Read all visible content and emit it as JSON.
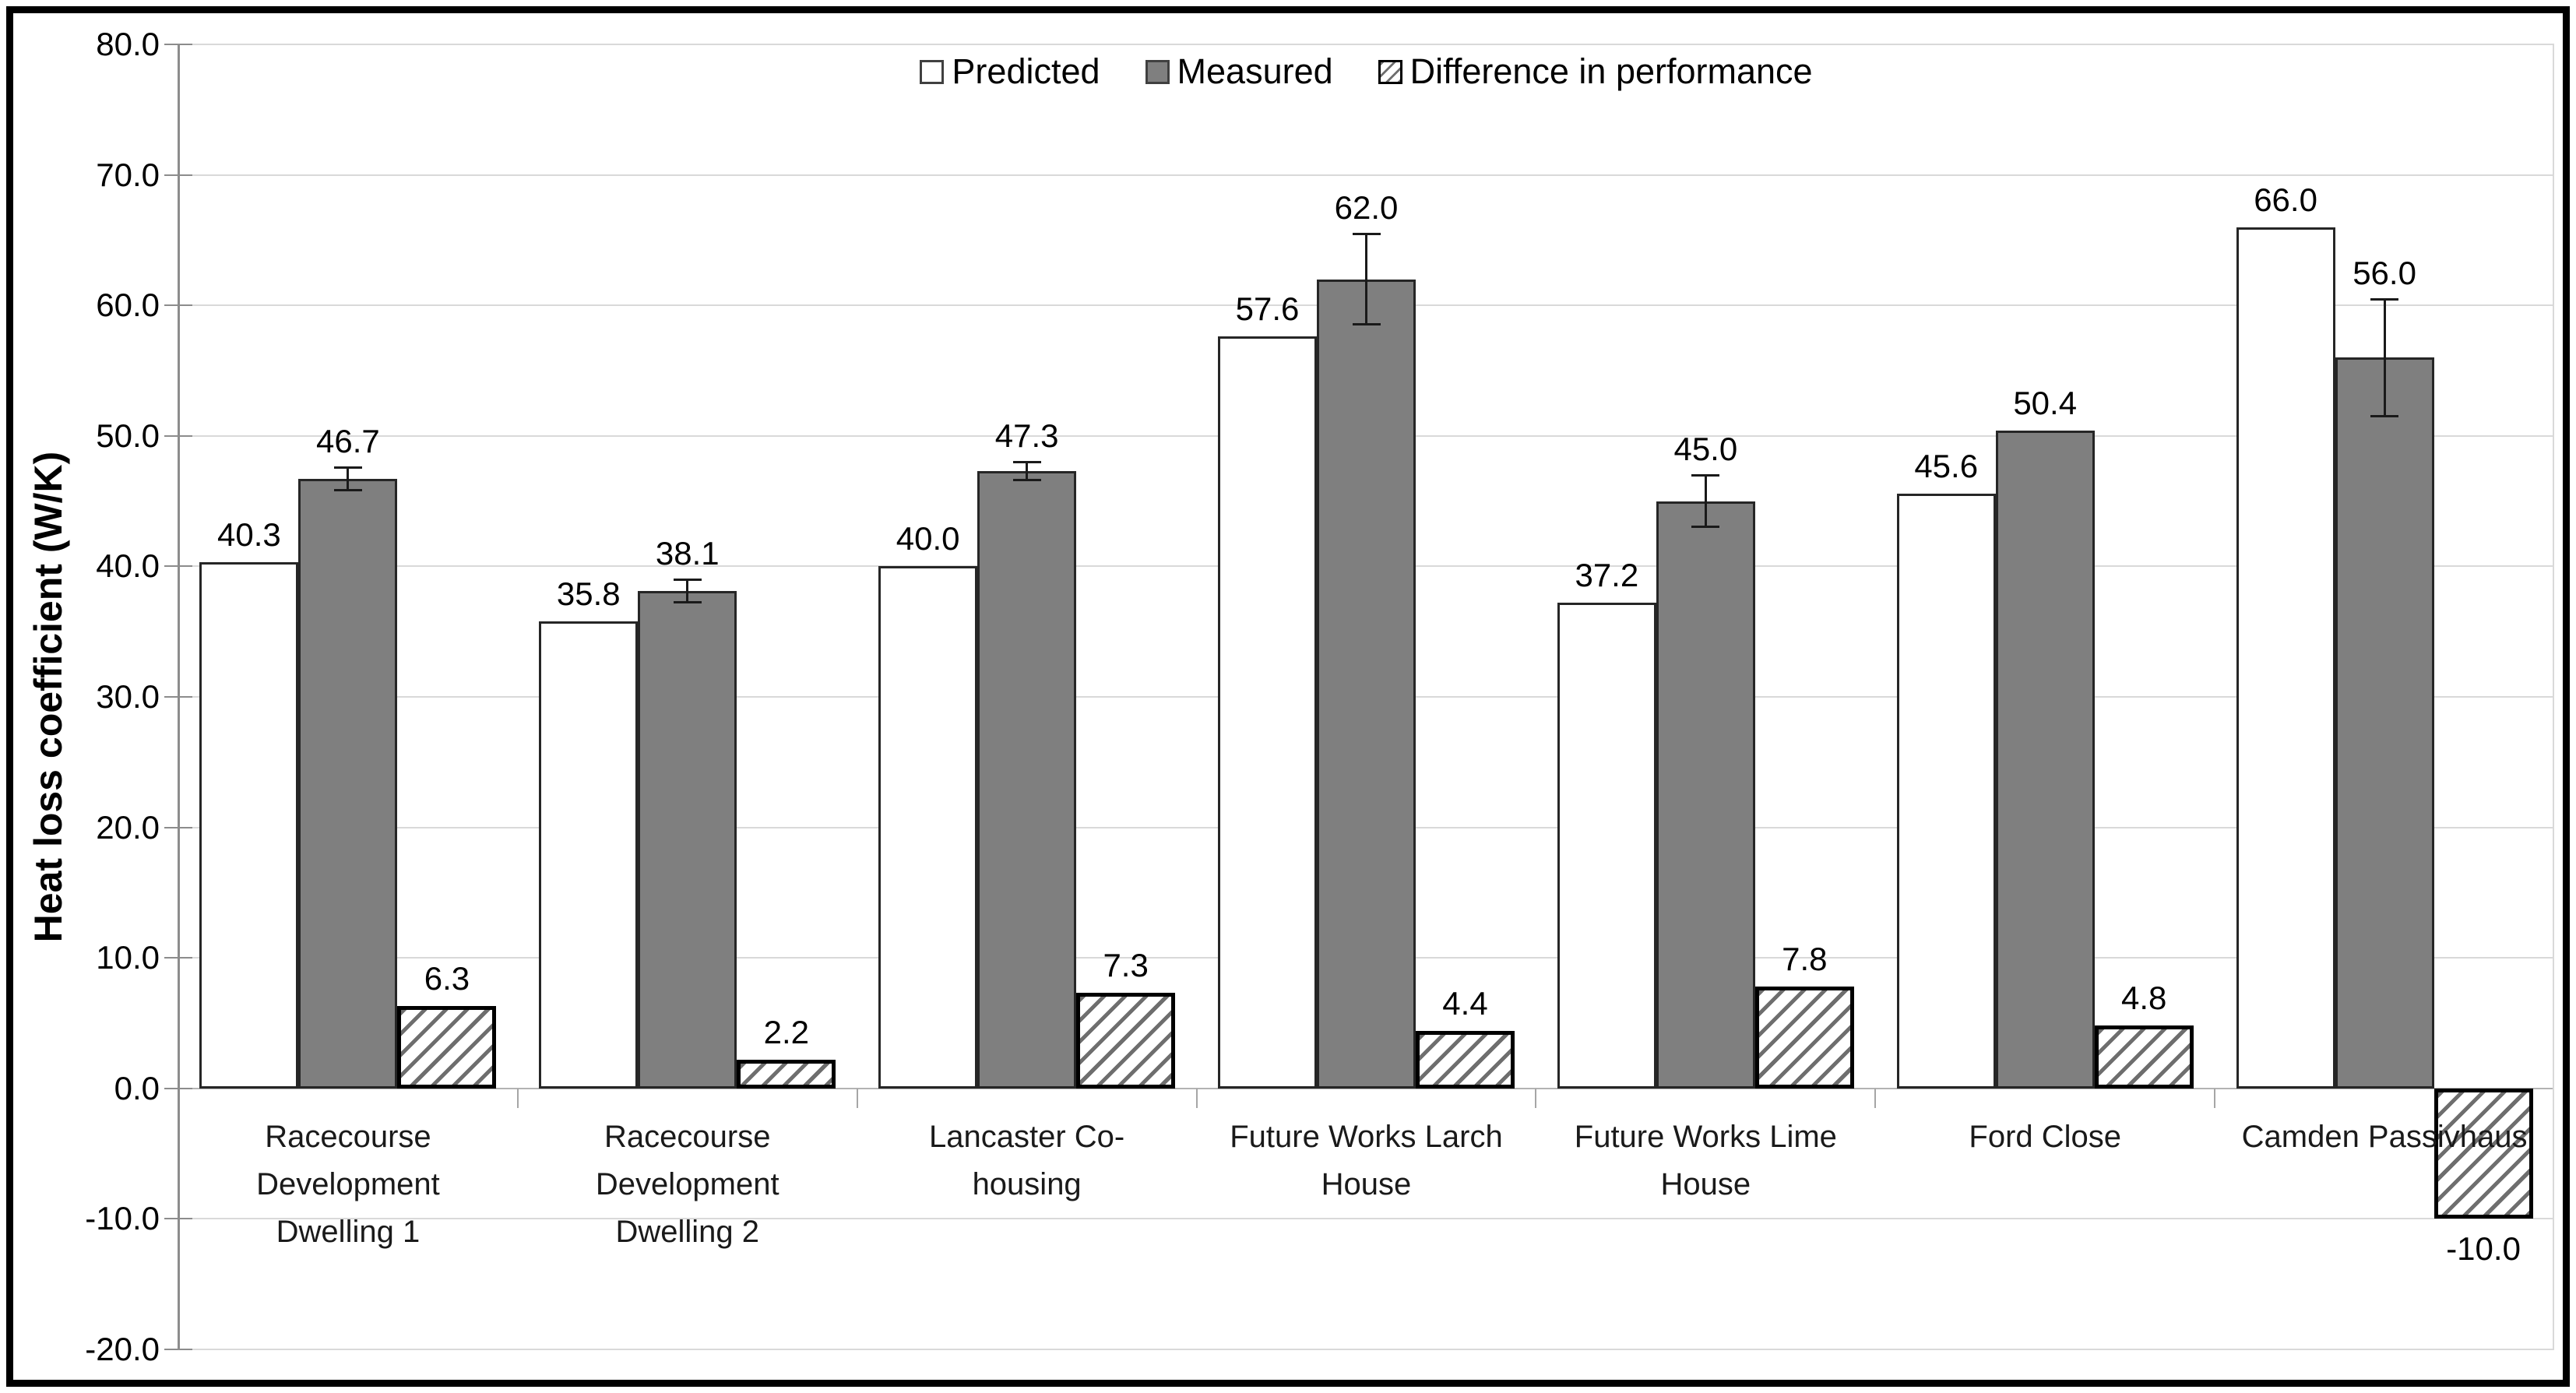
{
  "figure": {
    "background": "#ffffff",
    "border_color": "#000000"
  },
  "y_axis": {
    "title": "Heat loss coefficient (W/K)",
    "min": -20,
    "max": 80,
    "step": 10,
    "tick_labels": [
      "80.0",
      "70.0",
      "60.0",
      "50.0",
      "40.0",
      "30.0",
      "20.0",
      "10.0",
      "0.0",
      "-10.0",
      "-20.0"
    ]
  },
  "legend": {
    "items": [
      {
        "label": "Predicted",
        "swatch": "predicted"
      },
      {
        "label": "Measured",
        "swatch": "measured"
      },
      {
        "label": "Difference in performance",
        "swatch": "difference"
      }
    ]
  },
  "colors": {
    "predicted_fill": "#ffffff",
    "measured_fill": "#7f7f7f",
    "hatch_line": "#6e6e6e",
    "bar_border": "#262626",
    "gridline": "#d9d9d9",
    "axis_line": "#8c8c8c"
  },
  "chart_data": {
    "type": "bar",
    "title": "",
    "xlabel": "",
    "ylabel": "Heat loss coefficient (W/K)",
    "ylim": [
      -20,
      80
    ],
    "grid": true,
    "legend_position": "top-center",
    "categories": [
      "Racecourse Development Dwelling 1",
      "Racecourse Development Dwelling 2",
      "Lancaster Co-housing",
      "Future Works Larch House",
      "Future Works Lime House",
      "Ford Close",
      "Camden Passivhaus"
    ],
    "categories_multiline": [
      [
        "Racecourse",
        "Development",
        "Dwelling 1"
      ],
      [
        "Racecourse",
        "Development",
        "Dwelling 2"
      ],
      [
        "Lancaster Co-",
        "housing"
      ],
      [
        "Future Works Larch",
        "House"
      ],
      [
        "Future Works Lime",
        "House"
      ],
      [
        "Ford Close"
      ],
      [
        "Camden Passivhaus"
      ]
    ],
    "series": [
      {
        "name": "Predicted",
        "values": [
          40.3,
          35.8,
          40.0,
          57.6,
          37.2,
          45.6,
          66.0
        ]
      },
      {
        "name": "Measured",
        "values": [
          46.7,
          38.1,
          47.3,
          62.0,
          45.0,
          50.4,
          56.0
        ],
        "error_bars": [
          0.9,
          0.9,
          0.7,
          3.5,
          2.0,
          0,
          4.5
        ]
      },
      {
        "name": "Difference in performance",
        "values": [
          6.3,
          2.2,
          7.3,
          4.4,
          7.8,
          4.8,
          -10.0
        ]
      }
    ]
  }
}
